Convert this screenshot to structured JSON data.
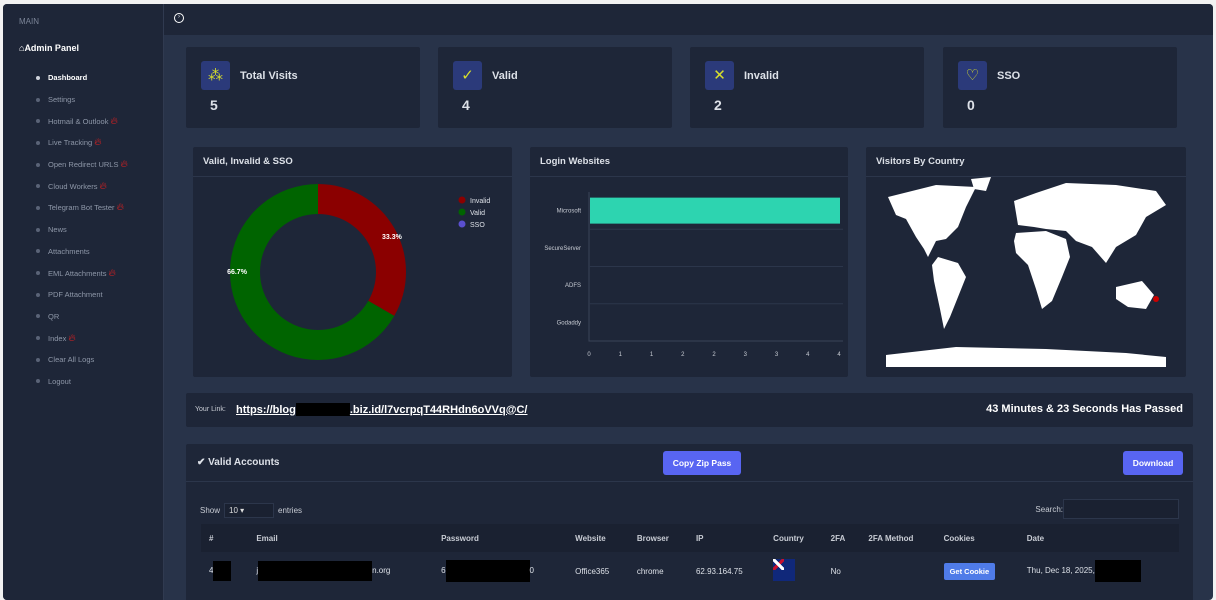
{
  "sidebar": {
    "section": "MAIN",
    "panel": "Admin Panel",
    "items": [
      {
        "label": "Dashboard",
        "hot": false,
        "active": true
      },
      {
        "label": "Settings",
        "hot": false
      },
      {
        "label": "Hotmail & Outlook",
        "hot": true
      },
      {
        "label": "Live Tracking",
        "hot": true
      },
      {
        "label": "Open Redirect URLS",
        "hot": true
      },
      {
        "label": "Cloud Workers",
        "hot": true
      },
      {
        "label": "Telegram Bot Tester",
        "hot": true
      },
      {
        "label": "News",
        "hot": false
      },
      {
        "label": "Attachments",
        "hot": false
      },
      {
        "label": "EML Attachments",
        "hot": true
      },
      {
        "label": "PDF Attachment",
        "hot": false
      },
      {
        "label": "QR",
        "hot": false
      },
      {
        "label": "Index",
        "hot": true
      },
      {
        "label": "Clear All Logs",
        "hot": false
      },
      {
        "label": "Logout",
        "hot": false
      }
    ]
  },
  "stats": [
    {
      "label": "Total Visits",
      "value": "5",
      "icon": "users-icon"
    },
    {
      "label": "Valid",
      "value": "4",
      "icon": "shield-check-icon"
    },
    {
      "label": "Invalid",
      "value": "2",
      "icon": "shield-x-icon"
    },
    {
      "label": "SSO",
      "value": "0",
      "icon": "sso-icon"
    }
  ],
  "chart_data": [
    {
      "type": "pie",
      "title": "Valid, Invalid & SSO",
      "categories": [
        "Invalid",
        "Valid",
        "SSO"
      ],
      "values": [
        33.3,
        66.7,
        0
      ],
      "labels": [
        "33.3%",
        "66.7%",
        ""
      ],
      "colors": [
        "#8b0000",
        "#006400",
        "#5a4fcf"
      ],
      "legend": "top-right",
      "donut": true
    },
    {
      "type": "bar",
      "orientation": "horizontal",
      "title": "Login Websites",
      "categories": [
        "Microsoft",
        "SecureServer",
        "ADFS",
        "Godaddy"
      ],
      "values": [
        4,
        0,
        0,
        0
      ],
      "xticks": [
        "0",
        "1",
        "1",
        "2",
        "2",
        "3",
        "3",
        "4",
        "4"
      ],
      "xlim": [
        0,
        4
      ],
      "color": "#2dd4b0"
    },
    {
      "type": "map",
      "title": "Visitors By Country"
    }
  ],
  "link": {
    "label": "Your Link:",
    "prefix": "https://blog",
    "suffix": ".biz.id/l7vcrpqT44RHdn6oVVq@C/",
    "elapsed": "43 Minutes & 23 Seconds Has Passed"
  },
  "accounts": {
    "title": "Valid Accounts",
    "copy": "Copy Zip Pass",
    "download": "Download",
    "show": "Show",
    "entries": "entries",
    "page_size": "10",
    "search": "Search:",
    "columns": [
      "#",
      "Email",
      "Password",
      "Website",
      "Browser",
      "IP",
      "Country",
      "2FA",
      "2FA Method",
      "Cookies",
      "Date"
    ],
    "rows": [
      {
        "id": "4",
        "email_prefix": "j",
        "email_suffix": "n.org",
        "pw_prefix": "6",
        "pw_suffix": "0",
        "website": "Office365",
        "browser": "chrome",
        "ip": "62.93.164.75",
        "country": "nz-flag",
        "twofa": "No",
        "method": "",
        "cookie": "Get Cookie",
        "date": "Thu, Dec 18, 2025,"
      }
    ]
  }
}
